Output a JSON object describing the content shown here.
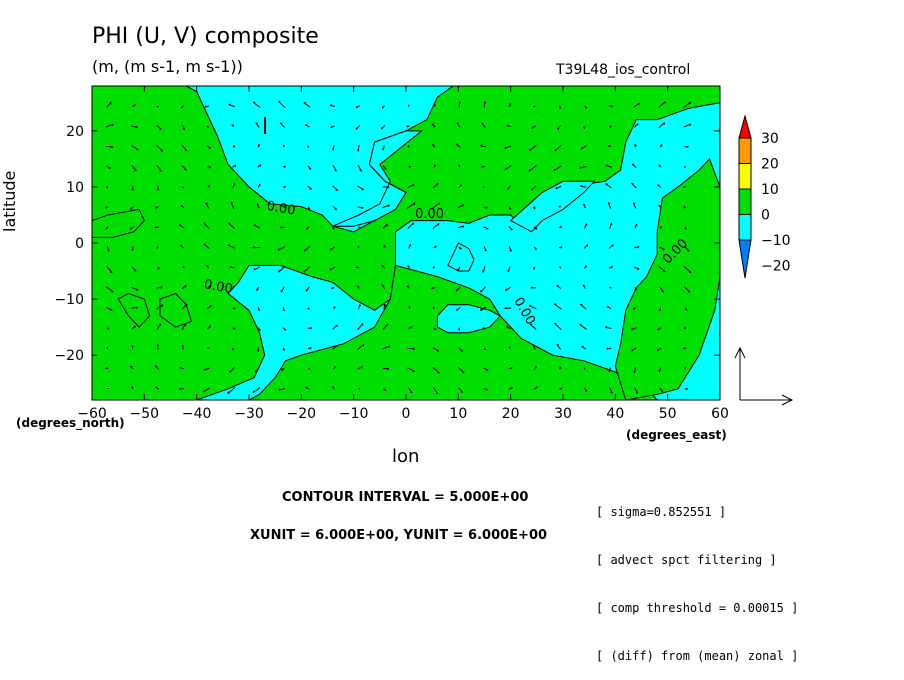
{
  "title": "PHI (U, V) composite",
  "units": "(m, (m s-1, m s-1))",
  "run_name": "T39L48_ios_control",
  "contour_interval": "CONTOUR INTERVAL = 5.000E+00",
  "vector_units": "XUNIT = 6.000E+00, YUNIT = 6.000E+00",
  "notes": [
    "[ sigma=0.852551 ]",
    "[ advect spct filtering ]",
    "[ comp threshold = 0.00015 ]",
    "[ (diff) from (mean) zonal ]"
  ],
  "colors": {
    "negative": "#00ffff",
    "zero_to_pos": "#00e000",
    "scale": [
      "#0080ff",
      "#00ffff",
      "#00e000",
      "#ffff00",
      "#ff9900",
      "#ff0000"
    ]
  },
  "chart_data": {
    "type": "contour-vector",
    "xlabel": "lon",
    "ylabel": "latitude",
    "x_unit_label": "(degrees_east)",
    "y_unit_label": "(degrees_north)",
    "xlim": [
      -60,
      60
    ],
    "ylim": [
      -28,
      28
    ],
    "x_ticks": [
      -60,
      -50,
      -40,
      -30,
      -20,
      -10,
      0,
      10,
      20,
      30,
      40,
      50,
      60
    ],
    "y_ticks": [
      -20,
      -10,
      0,
      10,
      20
    ],
    "colorbar": {
      "levels": [
        30,
        20,
        10,
        0,
        -10,
        -20
      ],
      "labels": [
        "30",
        "20",
        "10",
        "0",
        "−10",
        "−20"
      ]
    },
    "contour_labels": [
      {
        "text": "0.00",
        "lon": -24,
        "lat": 5.5,
        "angle": 10
      },
      {
        "text": "0.00",
        "lon": 4.5,
        "lat": 4.5,
        "angle": 0
      },
      {
        "text": "0.00",
        "lon": -36,
        "lat": -8.5,
        "angle": 10
      },
      {
        "text": "0.00",
        "lon": 22,
        "lat": -12.5,
        "angle": 60
      },
      {
        "text": "0.00",
        "lon": 52,
        "lat": -2,
        "angle": -45
      }
    ],
    "zero_regions": [
      [
        [
          -42,
          28
        ],
        [
          -40,
          27
        ],
        [
          -38,
          23
        ],
        [
          -36,
          19
        ],
        [
          -34,
          14
        ],
        [
          -30,
          10
        ],
        [
          -26,
          7
        ],
        [
          -20,
          6.5
        ],
        [
          -16,
          5
        ],
        [
          -14,
          3
        ],
        [
          -10,
          2
        ],
        [
          -6,
          4
        ],
        [
          -2,
          6
        ],
        [
          0,
          9
        ],
        [
          -4,
          11
        ],
        [
          -7,
          14
        ],
        [
          -6,
          18
        ],
        [
          0,
          20
        ],
        [
          4,
          22
        ],
        [
          6,
          26
        ],
        [
          9,
          28
        ],
        [
          60,
          28
        ],
        [
          60,
          25
        ],
        [
          54,
          24
        ],
        [
          48,
          22
        ],
        [
          44,
          22
        ],
        [
          42,
          18
        ],
        [
          41,
          13
        ],
        [
          38,
          11
        ],
        [
          31,
          10
        ],
        [
          28,
          9
        ],
        [
          26,
          6
        ],
        [
          24,
          3
        ],
        [
          22,
          3
        ],
        [
          20,
          5
        ],
        [
          16,
          5
        ],
        [
          12,
          3.5
        ],
        [
          8,
          4
        ],
        [
          4,
          4
        ],
        [
          1,
          4
        ],
        [
          -2,
          2
        ],
        [
          -2,
          -4
        ],
        [
          -3,
          -10
        ],
        [
          -6,
          -12
        ],
        [
          -10,
          -10
        ],
        [
          -14,
          -7
        ],
        [
          -18,
          -6
        ],
        [
          -24,
          -4
        ],
        [
          -30,
          -4
        ],
        [
          -32,
          -7
        ],
        [
          -34,
          -9
        ],
        [
          -30,
          -12
        ],
        [
          -28,
          -16
        ],
        [
          -27,
          -20
        ],
        [
          -29,
          -24
        ],
        [
          -34,
          -26
        ],
        [
          -40,
          -28
        ],
        [
          -60,
          -28
        ],
        [
          -60,
          28
        ]
      ],
      [
        [
          -2,
          -4
        ],
        [
          6,
          -6
        ],
        [
          12,
          -8
        ],
        [
          16,
          -10
        ],
        [
          18,
          -13
        ],
        [
          20,
          -15
        ],
        [
          22,
          -17
        ],
        [
          24,
          -18
        ],
        [
          26,
          -19
        ],
        [
          28,
          -20
        ],
        [
          34,
          -21
        ],
        [
          40,
          -23
        ],
        [
          46,
          -26
        ],
        [
          48,
          -28
        ],
        [
          -30,
          -28
        ],
        [
          -28,
          -27
        ],
        [
          -25,
          -24
        ],
        [
          -23,
          -21
        ],
        [
          -20,
          -20
        ],
        [
          -16,
          -19
        ],
        [
          -12,
          -18
        ],
        [
          -6,
          -15
        ],
        [
          -3,
          -10
        ]
      ],
      [
        [
          42,
          -28
        ],
        [
          48,
          -27
        ],
        [
          52,
          -26
        ],
        [
          56,
          -20
        ],
        [
          59,
          -12
        ],
        [
          60,
          -6
        ],
        [
          60,
          10
        ],
        [
          58,
          15
        ],
        [
          56,
          13
        ],
        [
          52,
          10
        ],
        [
          49,
          8
        ],
        [
          48,
          2
        ],
        [
          48,
          -2
        ],
        [
          46,
          -6
        ],
        [
          44,
          -8
        ],
        [
          42,
          -12
        ],
        [
          41,
          -18
        ],
        [
          40,
          -22
        ]
      ]
    ],
    "cyan_holes": [
      [
        [
          -14,
          3
        ],
        [
          -10,
          3
        ],
        [
          -6,
          4
        ],
        [
          -2,
          6
        ],
        [
          0,
          9
        ],
        [
          -4,
          11
        ],
        [
          -7,
          14
        ],
        [
          -6,
          18
        ],
        [
          0,
          20
        ],
        [
          3,
          20
        ],
        [
          -1,
          17
        ],
        [
          -5,
          14
        ],
        [
          -3,
          11
        ],
        [
          -5,
          7
        ],
        [
          -9,
          5
        ]
      ],
      [
        [
          6,
          -13
        ],
        [
          8,
          -11
        ],
        [
          12,
          -11
        ],
        [
          16,
          -12
        ],
        [
          18,
          -13
        ],
        [
          16,
          -15
        ],
        [
          12,
          -16
        ],
        [
          8,
          -16
        ],
        [
          6,
          -15
        ]
      ],
      [
        [
          8,
          -4
        ],
        [
          9,
          -2
        ],
        [
          10,
          0
        ],
        [
          12,
          -1
        ],
        [
          13,
          -3
        ],
        [
          12,
          -5
        ],
        [
          10,
          -5
        ]
      ],
      [
        [
          20,
          4
        ],
        [
          26,
          9
        ],
        [
          30,
          11
        ],
        [
          36,
          11
        ],
        [
          34,
          9
        ],
        [
          30,
          6
        ],
        [
          26,
          4
        ],
        [
          24,
          2
        ]
      ]
    ],
    "green_blobs": [
      [
        [
          -55,
          -10
        ],
        [
          -53,
          -9
        ],
        [
          -50,
          -10
        ],
        [
          -49,
          -13
        ],
        [
          -51,
          -15
        ],
        [
          -53,
          -13
        ]
      ],
      [
        [
          -47,
          -10
        ],
        [
          -44,
          -9
        ],
        [
          -42,
          -11
        ],
        [
          -41,
          -14
        ],
        [
          -44,
          -15
        ],
        [
          -47,
          -13
        ]
      ],
      [
        [
          -60,
          4
        ],
        [
          -57,
          5
        ],
        [
          -54,
          5.5
        ],
        [
          -51,
          6
        ],
        [
          -50,
          4
        ],
        [
          -52,
          2
        ],
        [
          -56,
          1
        ],
        [
          -60,
          1
        ]
      ]
    ],
    "vector_field": "generated from smooth synthetic function; arrows at ~5 deg spacing"
  }
}
